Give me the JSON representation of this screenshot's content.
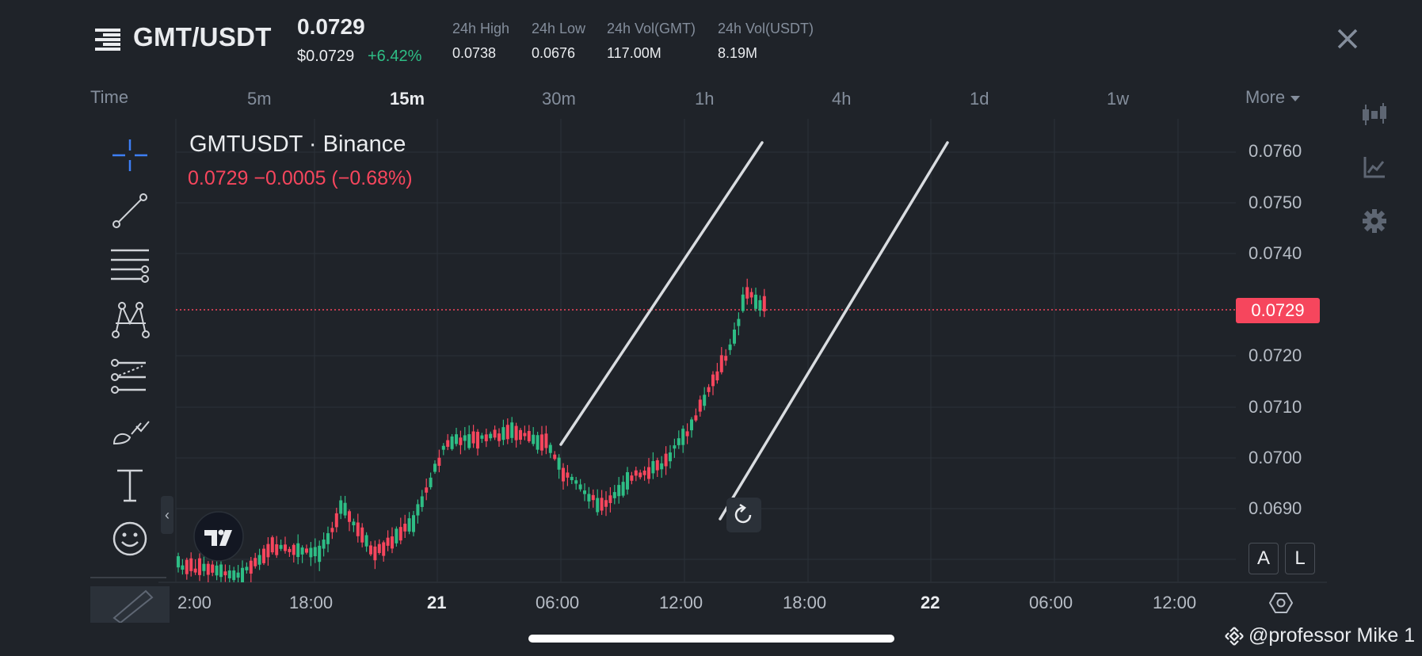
{
  "header": {
    "pair": "GMT/USDT",
    "price": "0.0729",
    "price_usd": "$0.0729",
    "change_pct": "+6.42%",
    "stats": [
      {
        "label": "24h High",
        "value": "0.0738"
      },
      {
        "label": "24h Low",
        "value": "0.0676"
      },
      {
        "label": "24h Vol(GMT)",
        "value": "117.00M"
      },
      {
        "label": "24h Vol(USDT)",
        "value": "8.19M"
      }
    ]
  },
  "timeframes": {
    "time_label": "Time",
    "items": [
      "5m",
      "15m",
      "30m",
      "1h",
      "4h",
      "1d",
      "1w"
    ],
    "active": "15m",
    "more_label": "More"
  },
  "chart": {
    "symbol": "GMTUSDT · Binance",
    "ohlc": "0.0729  −0.0005 (−0.68%)",
    "current_price": "0.0729",
    "y_ticks": [
      "0.0760",
      "0.0750",
      "0.0740",
      "0.0720",
      "0.0710",
      "0.0700",
      "0.0690"
    ],
    "x_ticks": [
      "2:00",
      "18:00",
      "21",
      "06:00",
      "12:00",
      "18:00",
      "22",
      "06:00",
      "12:00"
    ],
    "auto_label": "A",
    "log_label": "L"
  },
  "toolbar_left": [
    "crosshair-icon",
    "trend-line-icon",
    "horizontal-lines-icon",
    "pattern-icon",
    "fib-icon",
    "brush-icon",
    "text-icon",
    "emoji-icon",
    "ruler-icon"
  ],
  "toolbar_right": [
    "candles-icon",
    "indicator-icon",
    "gear-icon"
  ],
  "colors": {
    "up": "#2ebd85",
    "down": "#f6465d",
    "bg": "#1f2329",
    "grid": "#2b3139"
  },
  "watermark": "@professor Mike 1"
}
